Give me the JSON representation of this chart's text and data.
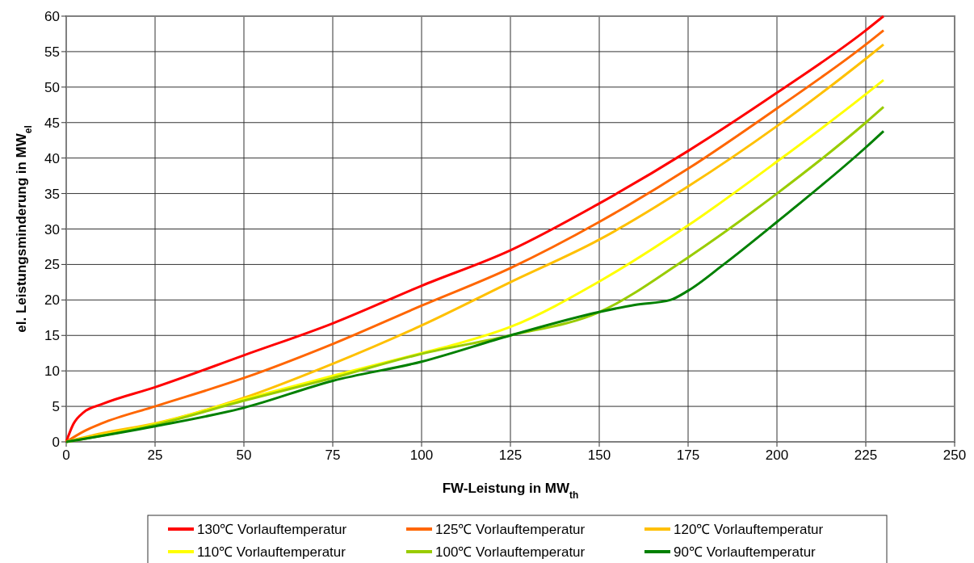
{
  "chart_data": {
    "type": "line",
    "xlabel": "FW-Leistung in MW$_{th}$",
    "ylabel": "el. Leistungsminderung in MW$_{el}$",
    "xlim": [
      0,
      250
    ],
    "xticks": [
      0,
      25,
      50,
      75,
      100,
      125,
      150,
      175,
      200,
      225,
      250
    ],
    "ylim": [
      0,
      60
    ],
    "yticks": [
      0,
      5,
      10,
      15,
      20,
      25,
      30,
      35,
      40,
      45,
      50,
      55,
      60
    ],
    "grid": true,
    "legend": "bottom",
    "marker": "none",
    "line_style": "solid",
    "series": [
      {
        "name": "130℃ Vorlauftemperatur",
        "color": "#ff0000",
        "x": [
          0,
          2,
          5,
          10,
          25,
          50,
          75,
          100,
          125,
          150,
          175,
          200,
          225,
          230
        ],
        "values": [
          0,
          2.5,
          4.2,
          5.3,
          7.7,
          12.2,
          16.7,
          22.0,
          27.0,
          33.6,
          41.0,
          49.2,
          58.0,
          60.0
        ]
      },
      {
        "name": "125℃ Vorlauftemperatur",
        "color": "#ff6600",
        "x": [
          0,
          5,
          10,
          25,
          50,
          75,
          100,
          125,
          150,
          175,
          200,
          225,
          230
        ],
        "values": [
          0,
          1.5,
          2.6,
          5.0,
          9.0,
          13.8,
          19.2,
          24.5,
          31.0,
          38.5,
          47.0,
          56.0,
          58.0
        ]
      },
      {
        "name": "120℃ Vorlauftemperatur",
        "color": "#ffc000",
        "x": [
          0,
          10,
          25,
          50,
          75,
          100,
          125,
          150,
          175,
          200,
          225,
          230
        ],
        "values": [
          0,
          1.2,
          2.6,
          6.2,
          11.0,
          16.4,
          22.5,
          28.5,
          36.0,
          44.5,
          54.0,
          56.0
        ]
      },
      {
        "name": "110℃ Vorlauftemperatur",
        "color": "#ffff00",
        "x": [
          0,
          25,
          50,
          75,
          100,
          110,
          125,
          150,
          175,
          200,
          225,
          230
        ],
        "values": [
          0,
          2.5,
          6.0,
          9.3,
          12.5,
          13.8,
          16.2,
          22.6,
          30.5,
          39.5,
          49.0,
          51.0
        ]
      },
      {
        "name": "100℃ Vorlauftemperatur",
        "color": "#99cc00",
        "x": [
          0,
          25,
          50,
          75,
          100,
          125,
          150,
          175,
          200,
          225,
          230
        ],
        "values": [
          0,
          2.4,
          5.8,
          9.0,
          12.4,
          15.0,
          18.3,
          26.0,
          35.0,
          45.0,
          47.2
        ]
      },
      {
        "name": "90℃ Vorlauftemperatur",
        "color": "#008000",
        "x": [
          0,
          25,
          50,
          75,
          100,
          125,
          150,
          160,
          170,
          175,
          185,
          200,
          225,
          230
        ],
        "values": [
          0,
          2.2,
          4.8,
          8.6,
          11.3,
          15.0,
          18.3,
          19.3,
          20.0,
          21.3,
          25.0,
          31.0,
          41.5,
          43.8
        ]
      }
    ]
  }
}
